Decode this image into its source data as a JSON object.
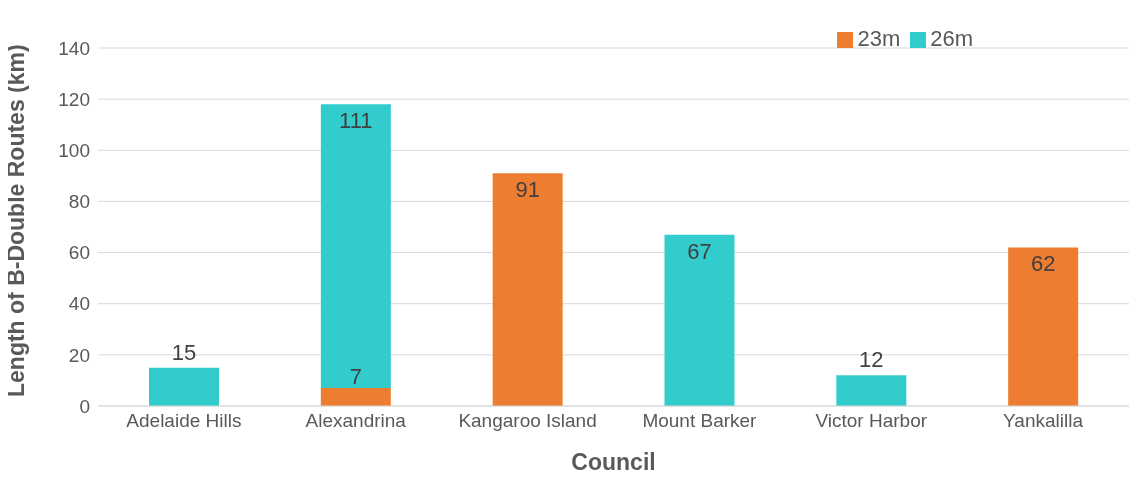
{
  "chart_data": {
    "type": "bar",
    "xlabel": "Council",
    "ylabel": "Length of B-Double Routes (km)",
    "categories": [
      "Adelaide Hills",
      "Alexandrina",
      "Kangaroo Island",
      "Mount Barker",
      "Victor Harbor",
      "Yankalilla"
    ],
    "series": [
      {
        "name": "23m",
        "color": "#ed7d31",
        "values": [
          null,
          7,
          91,
          null,
          null,
          62
        ]
      },
      {
        "name": "26m",
        "color": "#33cccc",
        "values": [
          15,
          111,
          null,
          67,
          12,
          null
        ]
      }
    ],
    "stacked": true,
    "ylim": [
      0,
      140
    ],
    "yticks": [
      0,
      20,
      40,
      60,
      80,
      100,
      120,
      140
    ],
    "grid": "y",
    "legend": "top right",
    "data_labels": true
  }
}
